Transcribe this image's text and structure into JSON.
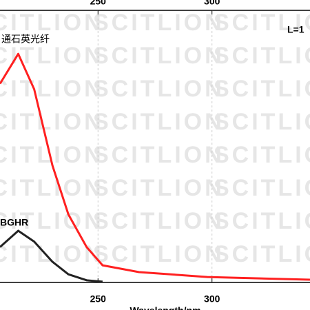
{
  "chart_data": {
    "type": "line",
    "x_label": "Wavelength/nm",
    "annotation": "L=1",
    "watermark": "SCITLION",
    "x": [
      207,
      215,
      222,
      230,
      237,
      245,
      252,
      268,
      298,
      343
    ],
    "series": [
      {
        "name": "通石英光纤",
        "color": "#ff2020",
        "values": [
          0.73,
          0.84,
          0.71,
          0.43,
          0.25,
          0.13,
          0.063,
          0.038,
          0.02,
          0.01
        ]
      },
      {
        "name": "BGHR",
        "color": "#222222",
        "values": [
          0.13,
          0.19,
          0.15,
          0.076,
          0.03,
          0.008,
          0.003,
          null,
          null,
          null
        ]
      }
    ],
    "xlim": [
      207,
      343
    ],
    "xticks": [
      250,
      300
    ],
    "ylim": [
      0,
      1
    ],
    "grid": true
  }
}
